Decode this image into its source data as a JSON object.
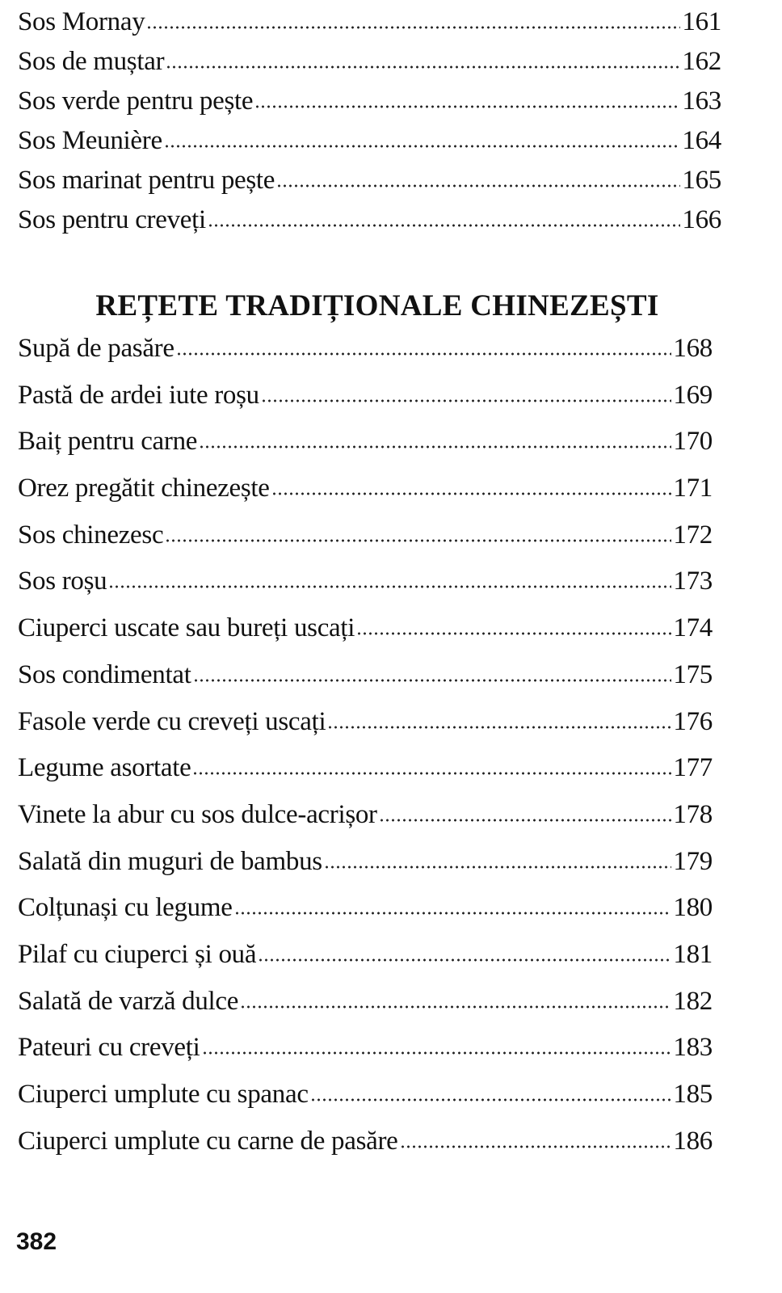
{
  "section1": {
    "entries": [
      {
        "title": "Sos Mornay",
        "page": "161"
      },
      {
        "title": "Sos de muștar",
        "page": "162"
      },
      {
        "title": "Sos verde pentru pește",
        "page": "163"
      },
      {
        "title": "Sos Meunière",
        "page": "164"
      },
      {
        "title": "Sos marinat pentru pește",
        "page": "165"
      },
      {
        "title": "Sos pentru creveți",
        "page": "166"
      }
    ]
  },
  "section2": {
    "heading": "REȚETE TRADIȚIONALE CHINEZEȘTI",
    "entries": [
      {
        "title": "Supă de pasăre",
        "page": "168"
      },
      {
        "title": "Pastă de ardei iute roșu",
        "page": "169"
      },
      {
        "title": "Baiț pentru carne",
        "page": "170"
      },
      {
        "title": "Orez pregătit chinezește",
        "page": "171"
      },
      {
        "title": "Sos chinezesc",
        "page": "172"
      },
      {
        "title": "Sos roșu",
        "page": "173"
      },
      {
        "title": "Ciuperci uscate sau bureți uscați",
        "page": "174"
      },
      {
        "title": "Sos condimentat",
        "page": "175"
      },
      {
        "title": "Fasole verde cu creveți uscați",
        "page": "176"
      },
      {
        "title": "Legume asortate",
        "page": "177"
      },
      {
        "title": "Vinete la abur cu sos dulce-acrișor",
        "page": "178"
      },
      {
        "title": "Salată din muguri de bambus",
        "page": "179"
      },
      {
        "title": "Colțunași cu legume",
        "page": "180"
      },
      {
        "title": "Pilaf cu ciuperci și ouă",
        "page": "181"
      },
      {
        "title": "Salată de varză dulce",
        "page": "182"
      },
      {
        "title": "Pateuri cu creveți",
        "page": "183"
      },
      {
        "title": "Ciuperci umplute cu spanac",
        "page": "185"
      },
      {
        "title": "Ciuperci umplute cu carne de pasăre",
        "page": "186"
      }
    ]
  },
  "footer": {
    "page_number": "382"
  }
}
